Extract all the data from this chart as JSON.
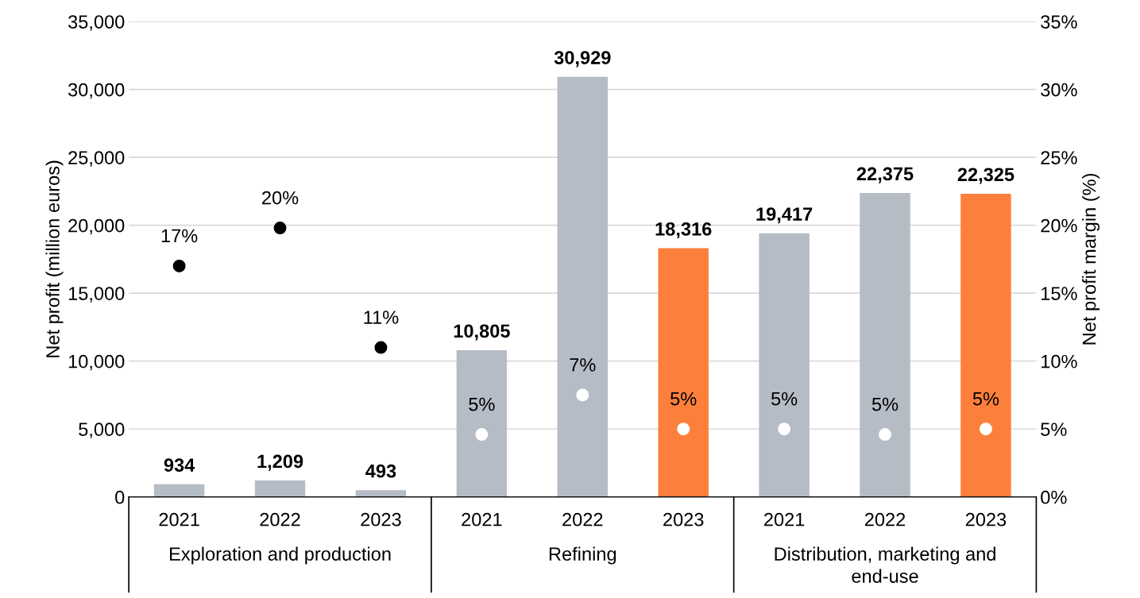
{
  "chart_data": {
    "type": "bar",
    "ylabel": "Net profit (million euros)",
    "y2label": "Net profit margin (%)",
    "categories": [
      "2021",
      "2022",
      "2023",
      "2021",
      "2022",
      "2023",
      "2021",
      "2022",
      "2023"
    ],
    "annotations": [
      "Exploration and production",
      "Refining",
      "Distribution, marketing and\nend-use"
    ],
    "series": [
      {
        "colors": [
          "#b5bcc5",
          "#b5bcc5",
          "#b5bcc5",
          "#b5bcc5",
          "#b5bcc5",
          "#fd7f3c",
          "#b5bcc5",
          "#b5bcc5",
          "#fd7f3c"
        ],
        "values": [
          934,
          1209,
          493,
          10805,
          30929,
          18316,
          19417,
          22375,
          22325
        ],
        "value_labels": [
          "934",
          "1,209",
          "493",
          "10,805",
          "30,929",
          "18,316",
          "19,417",
          "22,375",
          "22,325"
        ]
      },
      {
        "type": "scatter",
        "axis": "y2",
        "colors": [
          "#000000",
          "#000000",
          "#000000",
          "#ffffff",
          "#ffffff",
          "#ffffff",
          "#ffffff",
          "#ffffff",
          "#ffffff"
        ],
        "values": [
          17.0,
          19.8,
          11.0,
          4.6,
          7.5,
          5.0,
          5.0,
          4.6,
          5.0
        ],
        "value_labels": [
          "17%",
          "20%",
          "11%",
          "5%",
          "7%",
          "5%",
          "5%",
          "5%",
          "5%"
        ]
      }
    ],
    "ylim": [
      0,
      35000
    ],
    "yticks": [
      {
        "value": 0,
        "label": "0"
      },
      {
        "value": 5000,
        "label": "5,000"
      },
      {
        "value": 10000,
        "label": "10,000"
      },
      {
        "value": 15000,
        "label": "15,000"
      },
      {
        "value": 20000,
        "label": "20,000"
      },
      {
        "value": 25000,
        "label": "25,000"
      },
      {
        "value": 30000,
        "label": "30,000"
      },
      {
        "value": 35000,
        "label": "35,000"
      }
    ],
    "y2lim": [
      0,
      35
    ],
    "y2ticks": [
      {
        "value": 0,
        "label": "0%"
      },
      {
        "value": 5,
        "label": "5%"
      },
      {
        "value": 10,
        "label": "10%"
      },
      {
        "value": 15,
        "label": "15%"
      },
      {
        "value": 20,
        "label": "20%"
      },
      {
        "value": 25,
        "label": "25%"
      },
      {
        "value": 30,
        "label": "30%"
      },
      {
        "value": 35,
        "label": "35%"
      }
    ],
    "grid": "y",
    "legend": false,
    "marker": "circle"
  }
}
